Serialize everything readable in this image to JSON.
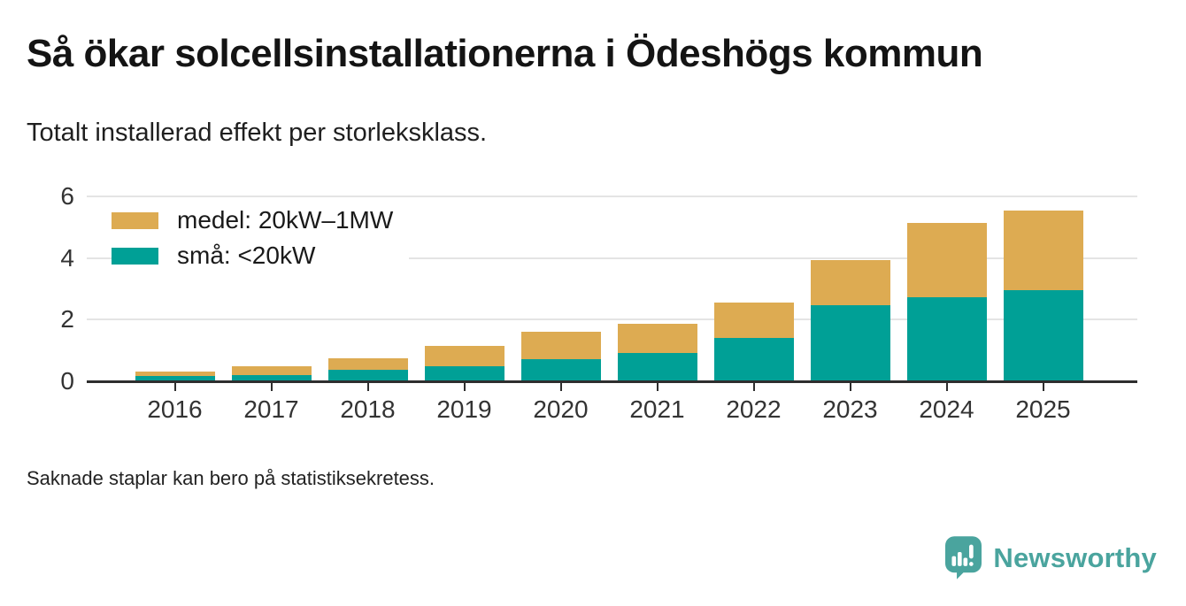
{
  "page": {
    "title": "Så ökar solcellsinstallationerna i Ödeshögs kommun",
    "subtitle": "Totalt installerad effekt per storleksklass.",
    "footnote": "Saknade staplar kan bero på statistiksekretess."
  },
  "brand": {
    "name": "Newsworthy",
    "icon": "newsworthy-speech-bubble-bar-chart-icon",
    "color": "#4aa49e"
  },
  "colors": {
    "medel": "#ddab52",
    "sma": "#00a096",
    "gridline": "#e4e4e4",
    "axis": "#2e2e2e"
  },
  "chart_data": {
    "type": "bar",
    "stacked": true,
    "title": "Så ökar solcellsinstallationerna i Ödeshögs kommun",
    "subtitle": "Totalt installerad effekt per storleksklass.",
    "categories": [
      "2016",
      "2017",
      "2018",
      "2019",
      "2020",
      "2021",
      "2022",
      "2023",
      "2024",
      "2025"
    ],
    "series": [
      {
        "name": "medel: 20kW–1MW",
        "color": "#ddab52",
        "values": [
          0.15,
          0.3,
          0.4,
          0.66,
          0.9,
          0.95,
          1.15,
          1.46,
          2.42,
          2.6
        ]
      },
      {
        "name": "små: <20kW",
        "color": "#00a096",
        "values": [
          0.18,
          0.2,
          0.36,
          0.48,
          0.72,
          0.92,
          1.42,
          2.46,
          2.72,
          2.95
        ]
      }
    ],
    "stack_order_bottom_to_top": [
      "små: <20kW",
      "medel: 20kW–1MW"
    ],
    "xlabel": "",
    "ylabel": "",
    "ylim": [
      0,
      6
    ],
    "yticks": [
      0,
      2,
      4,
      6
    ],
    "grid": "horizontal",
    "legend_position": "inside-top-left",
    "footnote": "Saknade staplar kan bero på statistiksekretess."
  }
}
